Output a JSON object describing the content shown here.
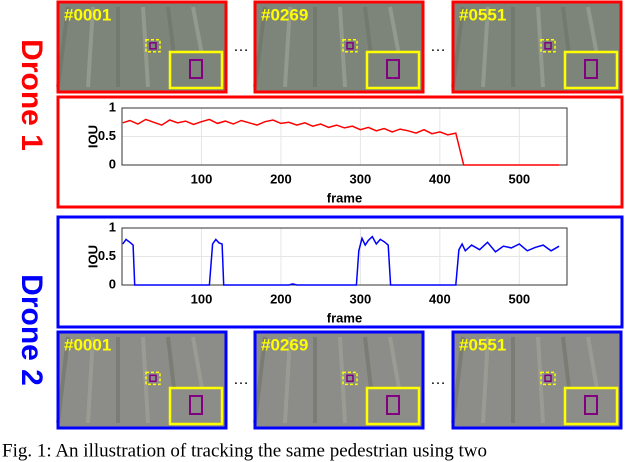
{
  "drone_1": {
    "label": "Drone 1",
    "frames": [
      "#0001",
      "#0269",
      "#0551"
    ],
    "separator": "…"
  },
  "drone_2": {
    "label": "Drone 2",
    "frames": [
      "#0001",
      "#0269",
      "#0551"
    ],
    "separator": "…"
  },
  "chart_data": [
    {
      "type": "line",
      "xlabel": "frame",
      "ylabel": "IOU",
      "color": "#ff0000",
      "grid": true,
      "xlim": [
        0,
        560
      ],
      "ylim": [
        0,
        1
      ],
      "xticks": [
        100,
        200,
        300,
        400,
        500
      ],
      "yticks": [
        0,
        0.5,
        1
      ],
      "x": [
        1,
        10,
        20,
        30,
        40,
        50,
        60,
        70,
        80,
        90,
        100,
        110,
        120,
        130,
        140,
        150,
        160,
        170,
        180,
        190,
        200,
        210,
        220,
        230,
        240,
        250,
        260,
        270,
        280,
        290,
        300,
        310,
        320,
        330,
        340,
        350,
        360,
        370,
        380,
        390,
        400,
        410,
        420,
        430,
        440,
        450,
        460,
        470,
        480,
        490,
        500,
        510,
        520,
        530,
        540,
        550
      ],
      "values": [
        0.74,
        0.78,
        0.72,
        0.8,
        0.75,
        0.7,
        0.79,
        0.74,
        0.77,
        0.71,
        0.76,
        0.8,
        0.73,
        0.77,
        0.72,
        0.78,
        0.74,
        0.7,
        0.76,
        0.79,
        0.73,
        0.75,
        0.7,
        0.74,
        0.68,
        0.72,
        0.66,
        0.7,
        0.65,
        0.68,
        0.62,
        0.66,
        0.6,
        0.64,
        0.58,
        0.63,
        0.6,
        0.56,
        0.62,
        0.55,
        0.58,
        0.53,
        0.56,
        0,
        0,
        0,
        0,
        0,
        0,
        0,
        0,
        0,
        0,
        0,
        0,
        0
      ]
    },
    {
      "type": "line",
      "xlabel": "frame",
      "ylabel": "IOU",
      "color": "#0000ff",
      "grid": true,
      "xlim": [
        0,
        560
      ],
      "ylim": [
        0,
        1
      ],
      "xticks": [
        100,
        200,
        300,
        400,
        500
      ],
      "yticks": [
        0,
        0.5,
        1
      ],
      "x": [
        1,
        5,
        10,
        14,
        16,
        110,
        114,
        118,
        122,
        126,
        128,
        130,
        200,
        210,
        215,
        220,
        295,
        298,
        302,
        306,
        310,
        315,
        320,
        325,
        330,
        335,
        338,
        340,
        420,
        424,
        428,
        432,
        440,
        450,
        460,
        470,
        480,
        490,
        500,
        510,
        520,
        530,
        540,
        550
      ],
      "values": [
        0.72,
        0.8,
        0.75,
        0.7,
        0,
        0,
        0.72,
        0.8,
        0.74,
        0.72,
        0,
        0,
        0,
        0,
        0.02,
        0,
        0,
        0.6,
        0.82,
        0.7,
        0.78,
        0.85,
        0.72,
        0.8,
        0.76,
        0.7,
        0,
        0,
        0,
        0.62,
        0.72,
        0.6,
        0.7,
        0.62,
        0.75,
        0.58,
        0.68,
        0.65,
        0.72,
        0.6,
        0.66,
        0.7,
        0.6,
        0.68
      ]
    }
  ],
  "caption": "Fig. 1: An illustration of tracking the same pedestrian using two"
}
